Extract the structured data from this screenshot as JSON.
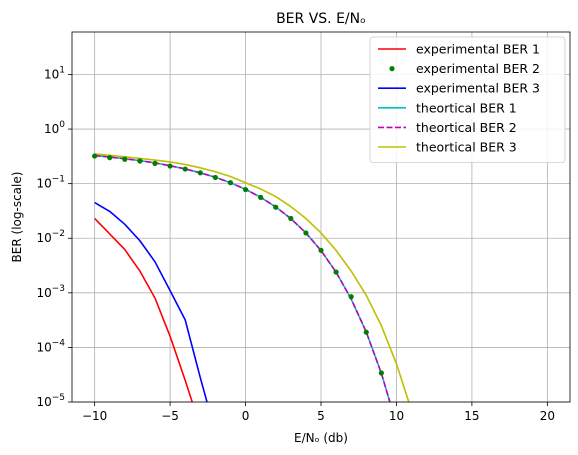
{
  "chart_data": {
    "type": "line",
    "title": "BER VS. E/Nₒ",
    "xlabel": "E/Nₒ (db)",
    "ylabel": "BER (log-scale)",
    "xlim": [
      -11.5,
      21.5
    ],
    "ylim": [
      1e-05,
      60
    ],
    "yscale": "log",
    "grid": true,
    "legend_position": "top-right",
    "x_ticks": [
      -10,
      -5,
      0,
      5,
      10,
      15,
      20
    ],
    "x_tick_labels": [
      "−10",
      "−5",
      "0",
      "5",
      "10",
      "15",
      "20"
    ],
    "y_ticks": [
      1e-05,
      0.0001,
      0.001,
      0.01,
      0.1,
      1,
      10
    ],
    "y_tick_labels": [
      {
        "base": "10",
        "exp": "−5"
      },
      {
        "base": "10",
        "exp": "−4"
      },
      {
        "base": "10",
        "exp": "−3"
      },
      {
        "base": "10",
        "exp": "−2"
      },
      {
        "base": "10",
        "exp": "−1"
      },
      {
        "base": "10",
        "exp": "0"
      },
      {
        "base": "10",
        "exp": "1"
      }
    ],
    "series": [
      {
        "name": "experimental BER 1",
        "style": "line",
        "color": "#ff0000",
        "x": [
          -10,
          -9,
          -8,
          -7,
          -6,
          -5,
          -4,
          -3
        ],
        "y": [
          0.023,
          0.012,
          0.0062,
          0.0025,
          0.0008,
          0.00016,
          2.5e-05,
          3.5e-06
        ]
      },
      {
        "name": "experimental BER 2",
        "style": "dots",
        "color": "#008000",
        "x": [
          -10,
          -9,
          -8,
          -7,
          -6,
          -5,
          -4,
          -3,
          -2,
          -1,
          0,
          1,
          2,
          3,
          4,
          5,
          6,
          7,
          8,
          9
        ],
        "y": [
          0.32,
          0.3,
          0.28,
          0.26,
          0.235,
          0.21,
          0.185,
          0.158,
          0.13,
          0.104,
          0.078,
          0.056,
          0.037,
          0.023,
          0.0125,
          0.006,
          0.0024,
          0.00085,
          0.00019,
          3.4e-05
        ]
      },
      {
        "name": "experimental BER 3",
        "style": "line",
        "color": "#0000ff",
        "x": [
          -10,
          -9,
          -8,
          -7,
          -6,
          -5,
          -4,
          -3,
          -2
        ],
        "y": [
          0.045,
          0.031,
          0.018,
          0.009,
          0.0037,
          0.0011,
          0.00032,
          2.8e-05,
          2.8e-06
        ]
      },
      {
        "name": "theortical BER 1",
        "style": "line",
        "color": "#00bfbf",
        "x": [
          -10,
          -9,
          -8,
          -7,
          -6,
          -5,
          -4,
          -3,
          -2,
          -1,
          0,
          1,
          2,
          3,
          4,
          5,
          6,
          7,
          8,
          9,
          10
        ],
        "y": [
          0.327,
          0.307,
          0.286,
          0.264,
          0.24,
          0.213,
          0.186,
          0.158,
          0.131,
          0.104,
          0.0786,
          0.0563,
          0.0375,
          0.0229,
          0.0125,
          0.00595,
          0.00239,
          0.00077,
          0.000191,
          3.36e-05,
          3.9e-06
        ]
      },
      {
        "name": "theortical BER 2",
        "style": "dashed",
        "color": "#bf00bf",
        "x": [
          -10,
          -9,
          -8,
          -7,
          -6,
          -5,
          -4,
          -3,
          -2,
          -1,
          0,
          1,
          2,
          3,
          4,
          5,
          6,
          7,
          8,
          9,
          10
        ],
        "y": [
          0.327,
          0.307,
          0.286,
          0.264,
          0.24,
          0.213,
          0.186,
          0.158,
          0.131,
          0.104,
          0.0786,
          0.0563,
          0.0375,
          0.0229,
          0.0125,
          0.00595,
          0.00239,
          0.00077,
          0.000191,
          3.36e-05,
          3.9e-06
        ]
      },
      {
        "name": "theortical BER 3",
        "style": "line",
        "color": "#bfbf00",
        "x": [
          -10,
          -9,
          -8,
          -7,
          -6,
          -5,
          -4,
          -3,
          -2,
          -1,
          0,
          1,
          2,
          3,
          4,
          5,
          6,
          7,
          8,
          9,
          10,
          11
        ],
        "y": [
          0.35,
          0.33,
          0.31,
          0.29,
          0.27,
          0.25,
          0.225,
          0.195,
          0.165,
          0.135,
          0.104,
          0.08,
          0.058,
          0.038,
          0.023,
          0.0125,
          0.006,
          0.0025,
          0.0009,
          0.00025,
          5e-05,
          7e-06
        ]
      }
    ]
  }
}
